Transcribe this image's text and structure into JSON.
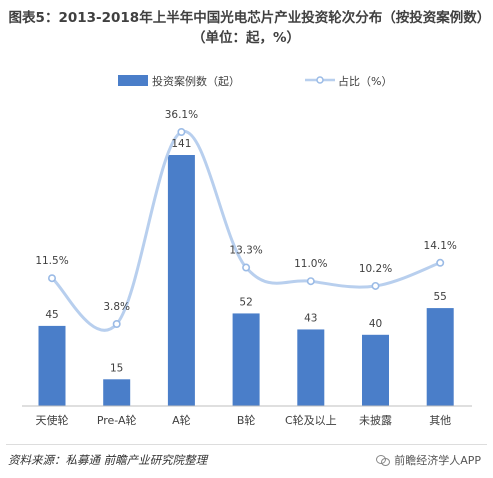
{
  "title": "图表5：2013-2018年上半年中国光电芯片产业投资轮次分布（按投资案例数）（单位：起，%）",
  "source": "资料来源：私募通    前瞻产业研究院整理",
  "credit": "前瞻经济学人APP",
  "colors": {
    "bar": "#4a7ec9",
    "line": "#b8cfee",
    "marker": "#9bbbe6",
    "text": "#404040"
  },
  "chart_data": {
    "type": "bar",
    "categories": [
      "天使轮",
      "Pre-A轮",
      "A轮",
      "B轮",
      "C轮及以上",
      "未披露",
      "其他"
    ],
    "series": [
      {
        "name": "投资案例数（起）",
        "type": "bar",
        "values": [
          45,
          15,
          141,
          52,
          43,
          40,
          55
        ],
        "labels": [
          "45",
          "15",
          "141",
          "52",
          "43",
          "40",
          "55"
        ]
      },
      {
        "name": "占比（%）",
        "type": "line",
        "values": [
          11.5,
          3.8,
          36.1,
          13.3,
          11.0,
          10.2,
          14.1
        ],
        "labels": [
          "11.5%",
          "3.8%",
          "36.1%",
          "13.3%",
          "11.0%",
          "10.2%",
          "14.1%"
        ]
      }
    ],
    "legend": "top-center",
    "grid": false
  }
}
